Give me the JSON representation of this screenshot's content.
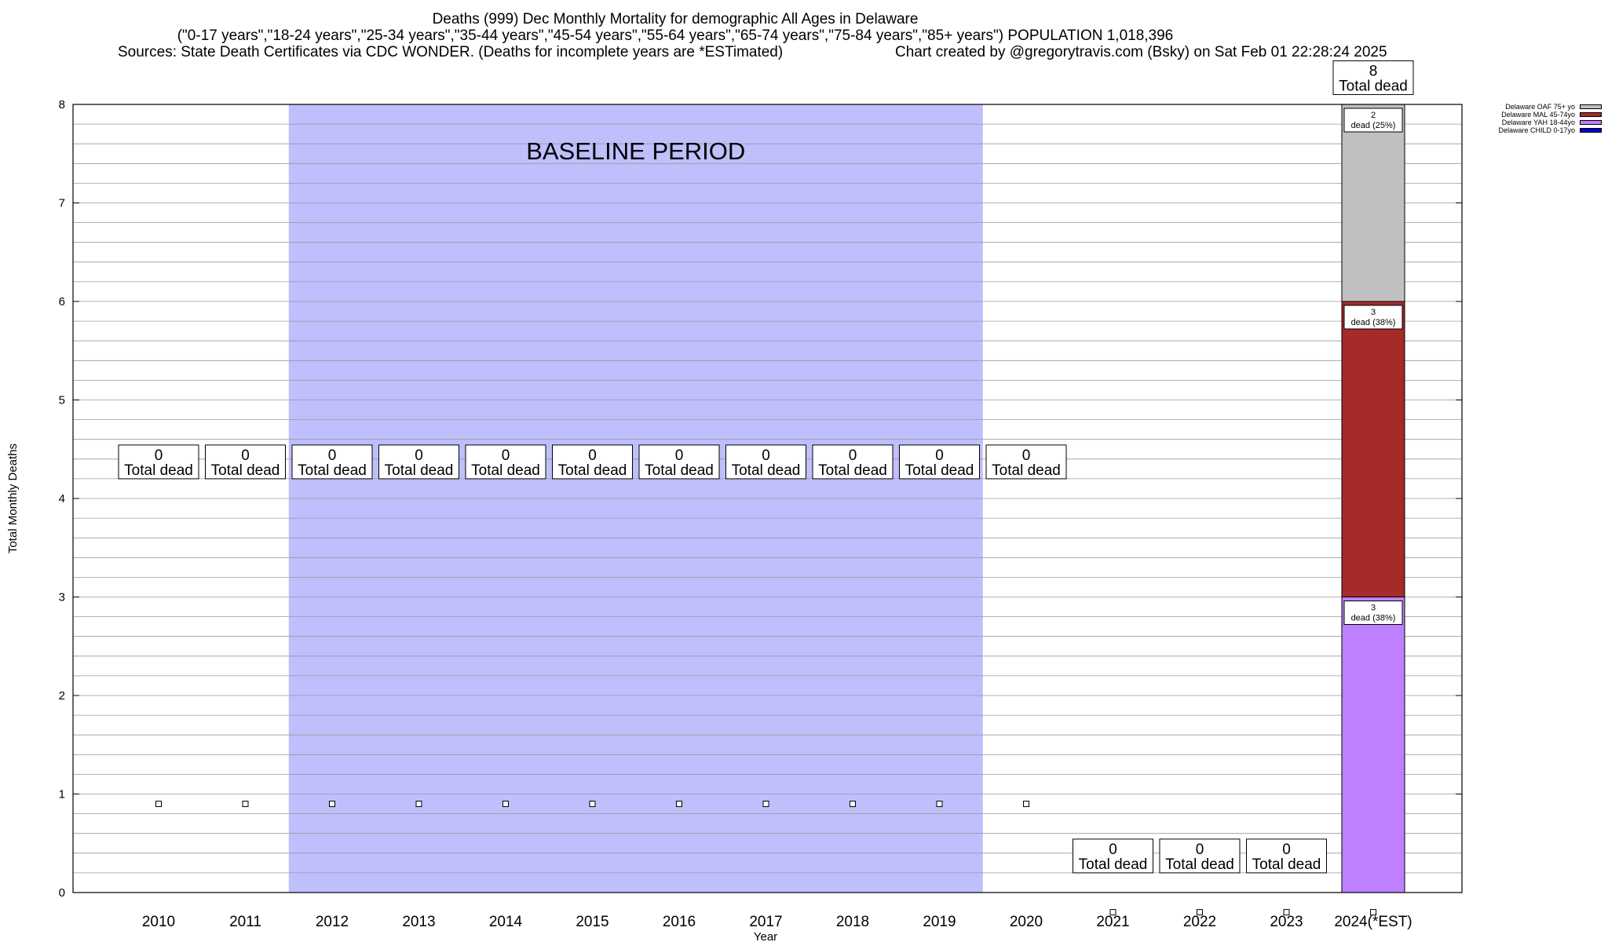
{
  "title": {
    "line1": "Deaths (999) Dec Monthly Mortality for demographic All Ages in Delaware",
    "line2": "(\"0-17 years\",\"18-24 years\",\"25-34 years\",\"35-44 years\",\"45-54 years\",\"55-64 years\",\"65-74 years\",\"75-84 years\",\"85+ years\") POPULATION 1,018,396",
    "line3_left": "Sources: State Death Certificates via CDC WONDER. (Deaths for incomplete years are *ESTimated)",
    "line3_right": "Chart created by @gregorytravis.com (Bsky) on Sat Feb 01 22:28:24 2025"
  },
  "legend": [
    {
      "label": "Delaware OAF 75+ yo",
      "color": "#c0c0c0"
    },
    {
      "label": "Delaware MAL 45-74yo",
      "color": "#a52a2a"
    },
    {
      "label": "Delaware YAH 18-44yo",
      "color": "#bf80ff"
    },
    {
      "label": "Delaware CHILD 0-17yo",
      "color": "#0000cd"
    }
  ],
  "chart_data": {
    "type": "bar",
    "stacked": true,
    "xlabel": "Year",
    "ylabel": "Total Monthly Deaths",
    "ylim": [
      0,
      8
    ],
    "yticks": [
      0,
      1,
      2,
      3,
      4,
      5,
      6,
      7,
      8
    ],
    "categories": [
      "2010",
      "2011",
      "2012",
      "2013",
      "2014",
      "2015",
      "2016",
      "2017",
      "2018",
      "2019",
      "2020",
      "2021",
      "2022",
      "2023",
      "2024(*EST)"
    ],
    "baseline": {
      "label": "BASELINE PERIOD",
      "from": "2012",
      "to": "2019",
      "color": "#bfbffc"
    },
    "series": [
      {
        "name": "Delaware CHILD 0-17yo",
        "color": "#0000cd",
        "values": [
          0,
          0,
          0,
          0,
          0,
          0,
          0,
          0,
          0,
          0,
          0,
          0,
          0,
          0,
          0
        ]
      },
      {
        "name": "Delaware YAH 18-44yo",
        "color": "#bf80ff",
        "values": [
          0,
          0,
          0,
          0,
          0,
          0,
          0,
          0,
          0,
          0,
          0,
          0,
          0,
          0,
          3
        ]
      },
      {
        "name": "Delaware MAL 45-74yo",
        "color": "#a52a2a",
        "values": [
          0,
          0,
          0,
          0,
          0,
          0,
          0,
          0,
          0,
          0,
          0,
          0,
          0,
          0,
          3
        ]
      },
      {
        "name": "Delaware OAF 75+ yo",
        "color": "#c0c0c0",
        "values": [
          0,
          0,
          0,
          0,
          0,
          0,
          0,
          0,
          0,
          0,
          0,
          0,
          0,
          0,
          2
        ]
      }
    ],
    "totals": [
      0,
      0,
      0,
      0,
      0,
      0,
      0,
      0,
      0,
      0,
      0,
      0,
      0,
      0,
      8
    ],
    "total_label_suffix": "Total dead",
    "segment_labels": [
      {
        "series": "Delaware YAH 18-44yo",
        "count": "3",
        "text": "dead (38%)"
      },
      {
        "series": "Delaware MAL 45-74yo",
        "count": "3",
        "text": "dead (38%)"
      },
      {
        "series": "Delaware OAF 75+ yo",
        "count": "2",
        "text": "dead (25%)"
      }
    ],
    "marker_values": [
      0.9,
      0.9,
      0.9,
      0.9,
      0.9,
      0.9,
      0.9,
      0.9,
      0.9,
      0.9,
      0.9,
      -0.2,
      -0.2,
      -0.2,
      -0.2
    ],
    "total_label_values": [
      4.2,
      4.2,
      4.2,
      4.2,
      4.2,
      4.2,
      4.2,
      4.2,
      4.2,
      4.2,
      4.2,
      0.2,
      0.2,
      0.2,
      8.1
    ]
  }
}
